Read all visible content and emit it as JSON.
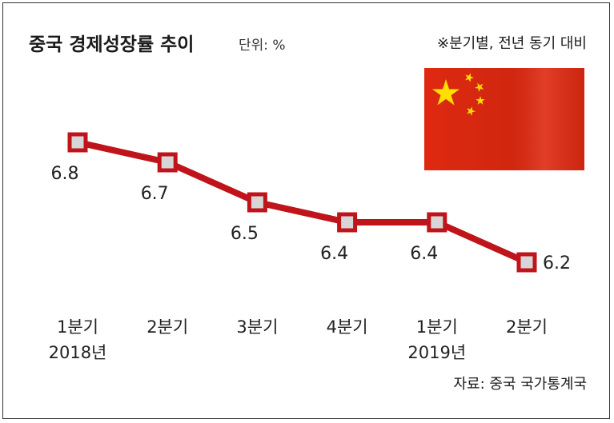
{
  "title": "중국 경제성장률 추이",
  "unit": "단위: %",
  "note": "※분기별, 전년 동기 대비",
  "source": "자료: 중국 국가통계국",
  "colors": {
    "line": "#c0141b",
    "marker_fill": "#d6d6d6",
    "flag_red": "#de2910",
    "flag_star": "#ffde00"
  },
  "chart_data": {
    "type": "line",
    "categories": [
      "1분기",
      "2분기",
      "3분기",
      "4분기",
      "1분기",
      "2분기"
    ],
    "year_labels": [
      "2018년",
      "",
      "",
      "",
      "2019년",
      ""
    ],
    "values": [
      6.8,
      6.7,
      6.5,
      6.4,
      6.4,
      6.2
    ],
    "value_labels": [
      "6.8",
      "6.7",
      "6.5",
      "6.4",
      "6.4",
      "6.2"
    ],
    "title": "중국 경제성장률 추이",
    "ylabel": "",
    "xlabel": "",
    "grid": false,
    "legend": false
  }
}
